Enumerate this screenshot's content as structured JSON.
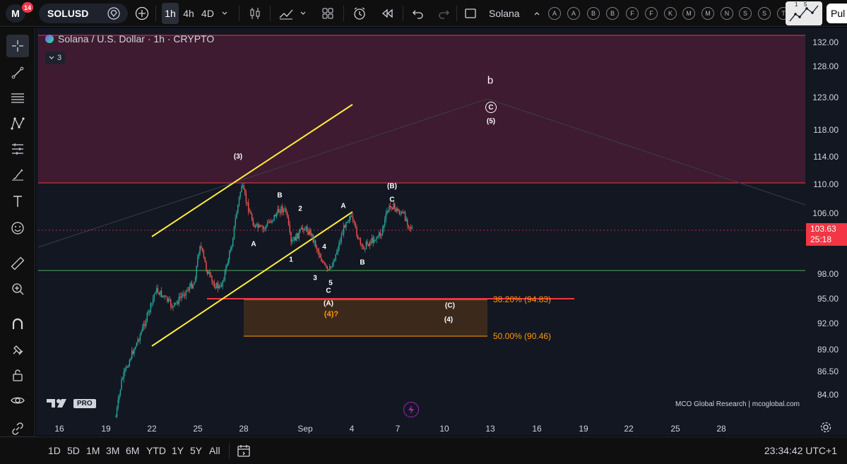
{
  "topbar": {
    "notifications": "14",
    "symbol": "SOLUSD",
    "intervals": [
      "1h",
      "4h",
      "4D"
    ],
    "layout_name": "Solana",
    "alphabet_buttons": [
      "A",
      "A",
      "B",
      "B",
      "F",
      "F",
      "K",
      "M",
      "M",
      "N",
      "S",
      "S",
      "T"
    ],
    "wave_labels": [
      "1",
      "5"
    ],
    "publish_label": "Pul"
  },
  "chart": {
    "title": "Solana / U.S. Dollar · 1h · CRYPTO",
    "indicator_count": "3",
    "price_labels": [
      "132.00",
      "128.00",
      "123.00",
      "118.00",
      "114.00",
      "110.00",
      "106.00",
      "98.00",
      "95.00",
      "92.00",
      "89.00",
      "86.50",
      "84.00"
    ],
    "last_price": "103.63",
    "countdown": "25:18",
    "time_labels": [
      "16",
      "19",
      "22",
      "25",
      "28",
      "Sep",
      "4",
      "7",
      "10",
      "13",
      "16",
      "19",
      "22",
      "25",
      "28"
    ],
    "fib_382": "38.20% (94.83)",
    "fib_500": "50.00% (90.46)",
    "wave_labels": {
      "w3": "(3)",
      "A1": "A",
      "B1": "B",
      "w2": "2",
      "w1": "1",
      "w4": "4",
      "w3b": "3",
      "w5": "5",
      "C1": "C",
      "A2": "A",
      "B2": "B",
      "C2": "C",
      "Bp": "(B)",
      "Ap": "(A)",
      "w4q": "(4)?",
      "Cp": "(C)",
      "w4p": "(4)",
      "b": "b",
      "circC": "C",
      "w5p": "(5)"
    },
    "tv_pro": "PRO",
    "credit": "MCO Global Research | mcoglobal.com"
  },
  "bottombar": {
    "ranges": [
      "1D",
      "5D",
      "1M",
      "3M",
      "6M",
      "YTD",
      "1Y",
      "5Y",
      "All"
    ],
    "clock": "23:34:42 UTC+1"
  },
  "colors": {
    "resistance_zone": "#3e1b31",
    "bull": "#26a69a",
    "bear": "#ef5350",
    "channel": "#ffeb3b",
    "fib": "#ff9800",
    "last_price": "#f23645"
  }
}
